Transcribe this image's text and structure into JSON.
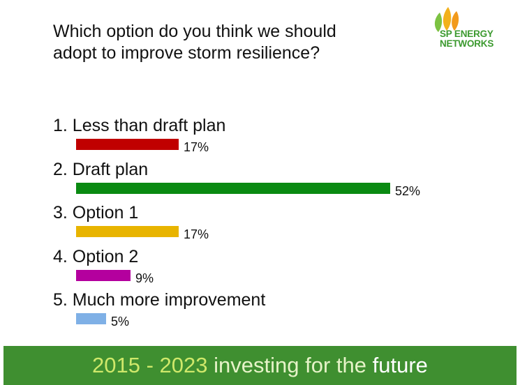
{
  "question": {
    "line1": "Which option do you think we should",
    "line2": "adopt to improve storm resilience?"
  },
  "logo": {
    "line1": "SP ENERGY",
    "line2": "NETWORKS",
    "icon": "sp-energy-leaves-icon",
    "color": "#3c9a2f"
  },
  "chart_data": {
    "type": "bar",
    "orientation": "horizontal",
    "title": "Which option do you think we should adopt to improve storm resilience?",
    "xlabel": "",
    "ylabel": "",
    "xlim": [
      0,
      52
    ],
    "grid": false,
    "categories": [
      "1. Less than draft plan",
      "2. Draft plan",
      "3. Option 1",
      "4. Option 2",
      "5. Much more improvement"
    ],
    "values": [
      17,
      52,
      17,
      9,
      5
    ],
    "value_labels": [
      "17%",
      "52%",
      "17%",
      "9%",
      "5%"
    ],
    "colors": [
      "#c00000",
      "#0a8a12",
      "#e8b400",
      "#b4009e",
      "#7fb0e6"
    ]
  },
  "footer": {
    "years": "2015 - 2023",
    "investing": "investing",
    "for_the": "for the",
    "future": "future",
    "color": "#3f8f30"
  }
}
